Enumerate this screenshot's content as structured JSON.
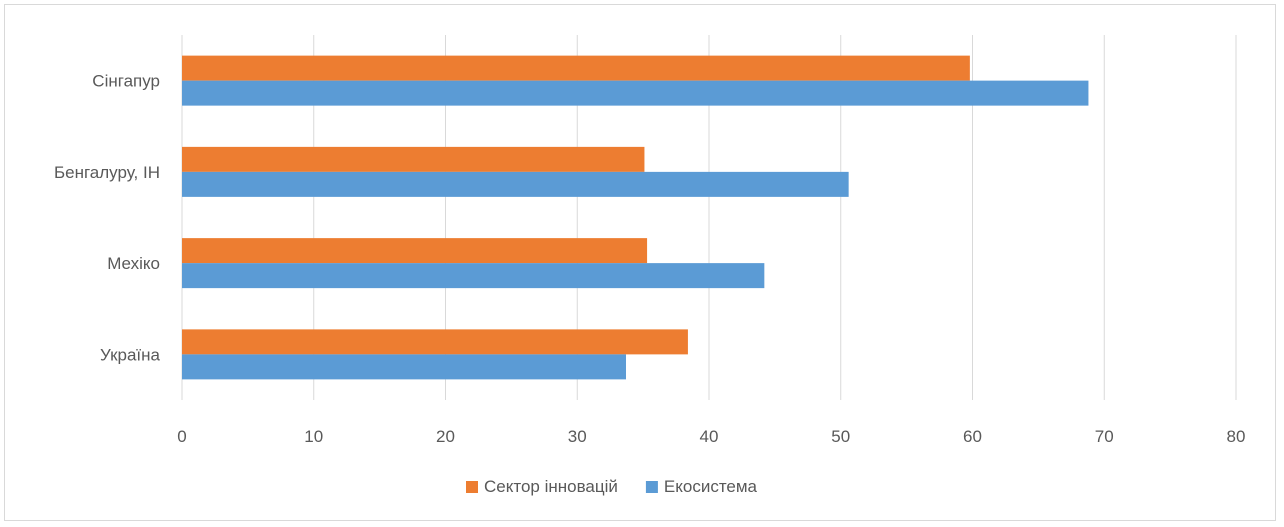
{
  "chart_data": {
    "type": "bar",
    "orientation": "horizontal",
    "categories": [
      "Сінгапур",
      "Бенгалуру, ІН",
      "Мехіко",
      "Україна"
    ],
    "series": [
      {
        "name": "Сектор інновацій",
        "values": [
          59.8,
          35.1,
          35.3,
          38.4
        ],
        "color": "#ED7D31"
      },
      {
        "name": "Екосистема",
        "values": [
          68.8,
          50.6,
          44.2,
          33.7
        ],
        "color": "#5B9BD5"
      }
    ],
    "xlim": [
      0,
      80
    ],
    "xticks": [
      0,
      10,
      20,
      30,
      40,
      50,
      60,
      70,
      80
    ],
    "grid": true,
    "legend": "bottom",
    "title": "",
    "xlabel": "",
    "ylabel": ""
  }
}
